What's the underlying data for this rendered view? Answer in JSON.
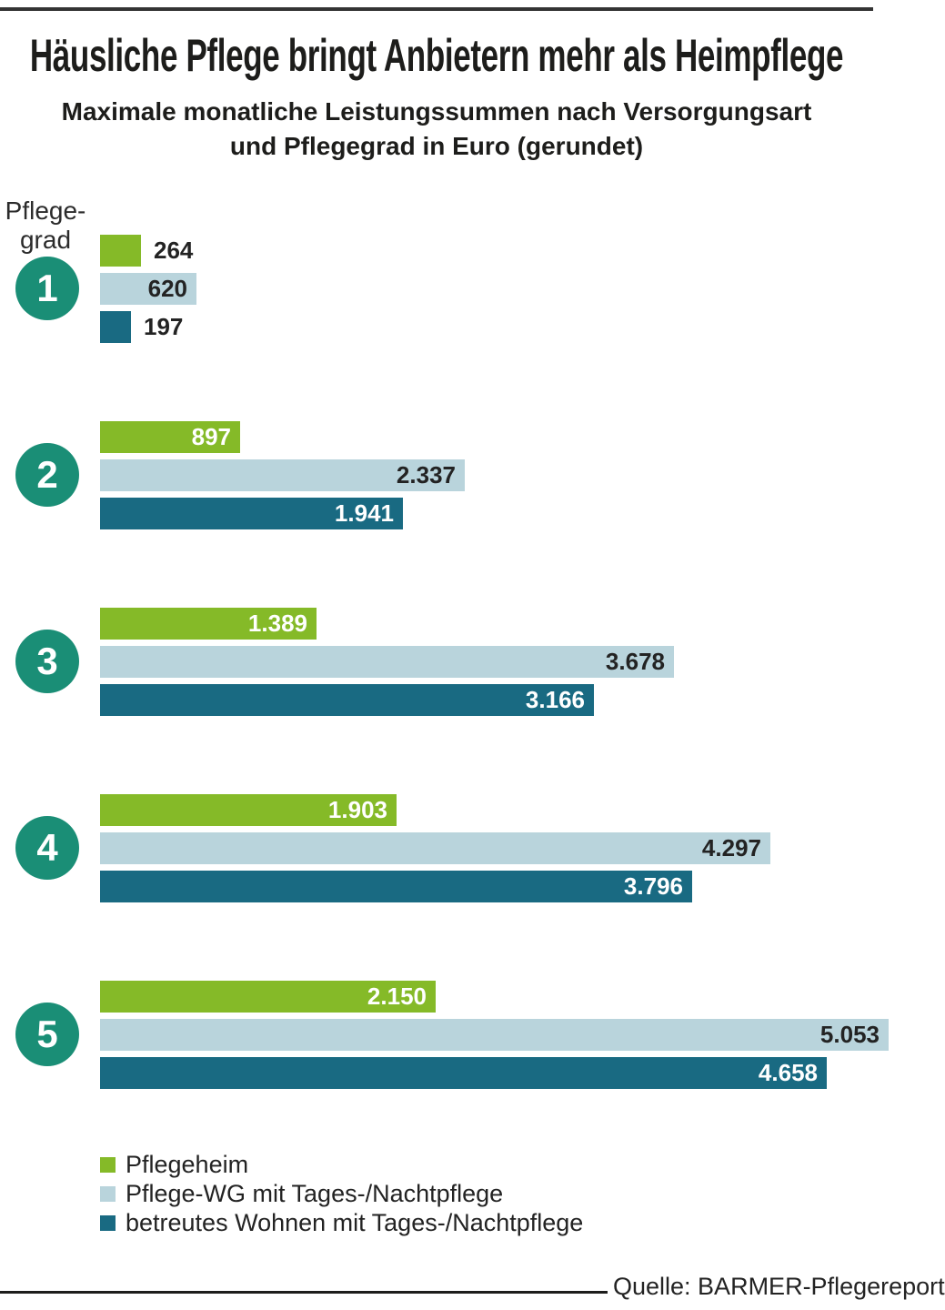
{
  "header": {
    "title": "Häusliche Pflege bringt Anbietern mehr als Heimpflege",
    "subtitle_line1": "Maximale monatliche Leistungssummen nach Versorgungsart",
    "subtitle_line2": "und Pflegegrad in Euro (gerundet)"
  },
  "axis": {
    "label_line1": "Pflege-",
    "label_line2": "grad"
  },
  "chart_data": {
    "type": "bar",
    "orientation": "horizontal",
    "title": "Häusliche Pflege bringt Anbietern mehr als Heimpflege",
    "subtitle": "Maximale monatliche Leistungssummen nach Versorgungsart und Pflegegrad in Euro (gerundet)",
    "group_axis_label": "Pflegegrad",
    "unit": "Euro",
    "grid": false,
    "value_axis_visible": false,
    "legend_position": "bottom",
    "categories": [
      "1",
      "2",
      "3",
      "4",
      "5"
    ],
    "series": [
      {
        "name": "Pflegeheim",
        "color": "#85ba28",
        "label_color_inside": "#ffffff",
        "values": [
          264,
          897,
          1389,
          1903,
          2150
        ],
        "labels": [
          "264",
          "897",
          "1.389",
          "1.903",
          "2.150"
        ]
      },
      {
        "name": "Pflege-WG mit Tages-/Nachtpflege",
        "color": "#b9d4dc",
        "label_color_inside": "#232323",
        "values": [
          620,
          2337,
          3678,
          4297,
          5053
        ],
        "labels": [
          "620",
          "2.337",
          "3.678",
          "4.297",
          "5.053"
        ]
      },
      {
        "name": "betreutes Wohnen mit Tages-/Nachtpflege",
        "color": "#196a82",
        "label_color_inside": "#ffffff",
        "values": [
          197,
          1941,
          3166,
          3796,
          4658
        ],
        "labels": [
          "197",
          "1.941",
          "3.166",
          "3.796",
          "4.658"
        ]
      }
    ]
  },
  "colors": {
    "category_circle": "#1a8e76",
    "dark_text": "#232323",
    "title_text": "#1d1d1b",
    "rule": "#333333"
  },
  "source": {
    "text": "Quelle: BARMER-Pflegereport"
  }
}
